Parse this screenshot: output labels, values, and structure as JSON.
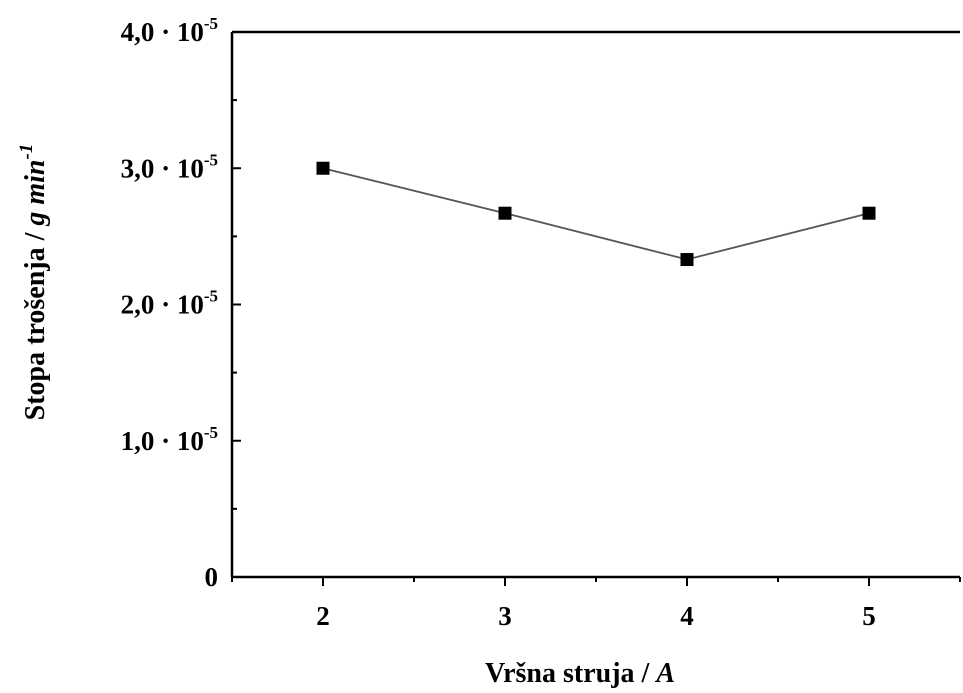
{
  "chart_data": {
    "type": "line",
    "title": "",
    "xlabel": "Vršna struja / A",
    "xlabel_parts": {
      "text": "Vršna struja / ",
      "unit": "A"
    },
    "ylabel": "Stopa trošenja / g min-1",
    "ylabel_parts": {
      "text": "Stopa trošenja / ",
      "unit": "g min",
      "unit_exp": "-1"
    },
    "x_scale": "linear",
    "y_scale": "linear",
    "xlim": [
      1.5,
      5.5
    ],
    "ylim": [
      0,
      4e-05
    ],
    "x_ticks": [
      {
        "value": 2,
        "label": "2"
      },
      {
        "value": 3,
        "label": "3"
      },
      {
        "value": 4,
        "label": "4"
      },
      {
        "value": 5,
        "label": "5"
      }
    ],
    "y_ticks": [
      {
        "value": 0,
        "label": "0",
        "exp": ""
      },
      {
        "value": 1e-05,
        "label": "1,0 · 10",
        "exp": "-5"
      },
      {
        "value": 2e-05,
        "label": "2,0 · 10",
        "exp": "-5"
      },
      {
        "value": 3e-05,
        "label": "3,0 · 10",
        "exp": "-5"
      },
      {
        "value": 4e-05,
        "label": "4,0 · 10",
        "exp": "-5"
      }
    ],
    "grid": false,
    "legend": "none",
    "series": [
      {
        "marker": "square",
        "color": "#000000",
        "line_color": "#555555",
        "x": [
          2,
          3,
          4,
          5
        ],
        "y": [
          3e-05,
          2.67e-05,
          2.33e-05,
          2.67e-05
        ]
      }
    ]
  }
}
